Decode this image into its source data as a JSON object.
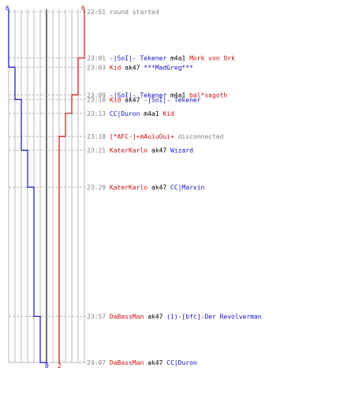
{
  "colors": {
    "blue": "#1010c0",
    "red": "#cc1010",
    "gray": "#808080",
    "grid": "#b8b8b8",
    "axis": "#707070"
  },
  "chart_data": {
    "type": "line",
    "series": [
      {
        "key": "blue",
        "start_label": "6",
        "end_label": "0",
        "steps": [
          [
            "22:51",
            6
          ],
          [
            "23:03",
            5
          ],
          [
            "23:10",
            4
          ],
          [
            "23:21",
            3
          ],
          [
            "23:29",
            2
          ],
          [
            "23:57",
            1
          ],
          [
            "24:07",
            0
          ]
        ]
      },
      {
        "key": "red",
        "start_label": "6",
        "end_label": "2",
        "steps": [
          [
            "22:51",
            6
          ],
          [
            "23:01",
            5
          ],
          [
            "23:09",
            4
          ],
          [
            "23:13",
            3
          ],
          [
            "23:18",
            2
          ]
        ]
      }
    ],
    "events": [
      {
        "time": "22:51",
        "parts": [
          [
            "round started",
            "gray"
          ]
        ]
      },
      {
        "time": "23:01",
        "parts": [
          [
            "-|SoI|- Tekener",
            "blue"
          ],
          [
            " m4a1 ",
            "black"
          ],
          [
            "Mork von Ork",
            "red"
          ]
        ]
      },
      {
        "time": "23:03",
        "parts": [
          [
            "Kid",
            "red"
          ],
          [
            " ak47 ",
            "black"
          ],
          [
            "***MadGreg***",
            "blue"
          ]
        ]
      },
      {
        "time": "23:09",
        "parts": [
          [
            "-|SoI|- Tekener",
            "blue"
          ],
          [
            " m4a1 ",
            "black"
          ],
          [
            "bal*sagoth",
            "red"
          ]
        ]
      },
      {
        "time": "23:10",
        "parts": [
          [
            "Kid",
            "red"
          ],
          [
            " ak47 ",
            "black"
          ],
          [
            "-|SoI|- Tekener",
            "blue"
          ]
        ]
      },
      {
        "time": "23:13",
        "parts": [
          [
            "CC|Duron",
            "blue"
          ],
          [
            " m4a1 ",
            "black"
          ],
          [
            "Kid",
            "red"
          ]
        ]
      },
      {
        "time": "23:18",
        "parts": [
          [
            "[*AFC-]+mAuiuOui+",
            "red"
          ],
          [
            " disconnected",
            "gray"
          ]
        ]
      },
      {
        "time": "23:21",
        "parts": [
          [
            "KaterKarlo",
            "red"
          ],
          [
            " ak47 ",
            "black"
          ],
          [
            "Wizard",
            "blue"
          ]
        ]
      },
      {
        "time": "23:29",
        "parts": [
          [
            "KaterKarlo",
            "red"
          ],
          [
            " ak47 ",
            "black"
          ],
          [
            "CC|Marvin",
            "blue"
          ]
        ]
      },
      {
        "time": "23:57",
        "parts": [
          [
            "DaBassMan",
            "red"
          ],
          [
            " ak47 ",
            "black"
          ],
          [
            "(1)-[bfc]-Der Revolverman",
            "blue"
          ]
        ]
      },
      {
        "time": "24:07",
        "parts": [
          [
            "DaBassMan",
            "red"
          ],
          [
            " ak47 ",
            "black"
          ],
          [
            "CC|Duron",
            "blue"
          ]
        ]
      }
    ]
  }
}
